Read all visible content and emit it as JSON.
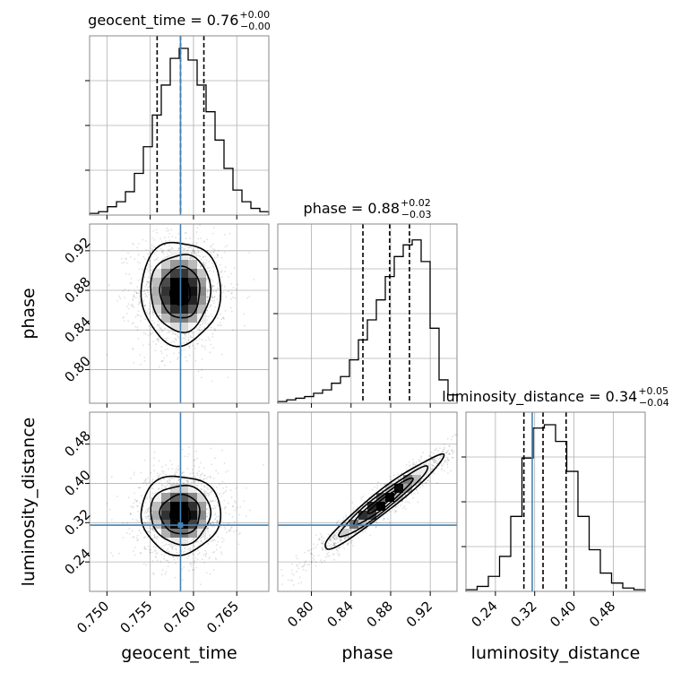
{
  "chart_data": {
    "type": "corner",
    "parameters": [
      "geocent_time",
      "phase",
      "luminosity_distance"
    ],
    "truths": {
      "geocent_time": 0.7585,
      "phase": null,
      "luminosity_distance": 0.315
    },
    "panels": {
      "geocent_time": {
        "title_value": "0.76",
        "title_plus": "+0.00",
        "title_minus": "−0.00",
        "range": [
          0.748,
          0.7687
        ],
        "ticks": [
          0.75,
          0.755,
          0.76,
          0.765
        ],
        "tick_labels": [
          "0.750",
          "0.755",
          "0.760",
          "0.765"
        ],
        "quantiles": [
          0.7558,
          0.7585,
          0.7612
        ],
        "hist": [
          0.01,
          0.02,
          0.05,
          0.08,
          0.14,
          0.25,
          0.41,
          0.6,
          0.78,
          0.94,
          1.0,
          0.93,
          0.78,
          0.62,
          0.45,
          0.28,
          0.15,
          0.08,
          0.04,
          0.02
        ]
      },
      "phase": {
        "title_value": "0.88",
        "title_plus": "+0.02",
        "title_minus": "−0.03",
        "range": [
          0.766,
          0.947
        ],
        "ticks": [
          0.8,
          0.84,
          0.88,
          0.92
        ],
        "tick_labels": [
          "0.80",
          "0.84",
          "0.88",
          "0.92"
        ],
        "quantiles": [
          0.852,
          0.879,
          0.899
        ],
        "hist": [
          0.01,
          0.02,
          0.03,
          0.04,
          0.06,
          0.08,
          0.12,
          0.16,
          0.26,
          0.38,
          0.5,
          0.62,
          0.76,
          0.88,
          0.95,
          0.98,
          0.85,
          0.45,
          0.14,
          0.05
        ]
      },
      "luminosity_distance": {
        "title_value": "0.34",
        "title_plus": "+0.05",
        "title_minus": "−0.04",
        "range": [
          0.18,
          0.545
        ],
        "ticks": [
          0.24,
          0.32,
          0.4,
          0.48
        ],
        "tick_labels": [
          "0.24",
          "0.32",
          "0.40",
          "0.48"
        ],
        "quantiles": [
          0.298,
          0.337,
          0.384
        ],
        "hist": [
          0.01,
          0.03,
          0.09,
          0.21,
          0.45,
          0.8,
          0.98,
          1.0,
          0.9,
          0.72,
          0.45,
          0.25,
          0.11,
          0.05,
          0.02,
          0.01
        ]
      }
    },
    "contours_2d": {
      "phase_vs_geocent_time": {
        "center": [
          0.7585,
          0.878
        ],
        "sigma": [
          0.0023,
          0.026
        ],
        "rho": 0.0
      },
      "luminosity_distance_vs_geocent_time": {
        "center": [
          0.7585,
          0.337
        ],
        "sigma": [
          0.0023,
          0.04
        ],
        "rho": 0.0
      },
      "luminosity_distance_vs_phase": {
        "center": [
          0.872,
          0.362
        ],
        "sigma": [
          0.03,
          0.048
        ],
        "rho": 0.96
      }
    },
    "grid": true,
    "truth_color": "#4682b4"
  },
  "axes": {
    "x": [
      "geocent_time",
      "phase",
      "luminosity_distance"
    ],
    "y": [
      "phase",
      "luminosity_distance"
    ]
  }
}
